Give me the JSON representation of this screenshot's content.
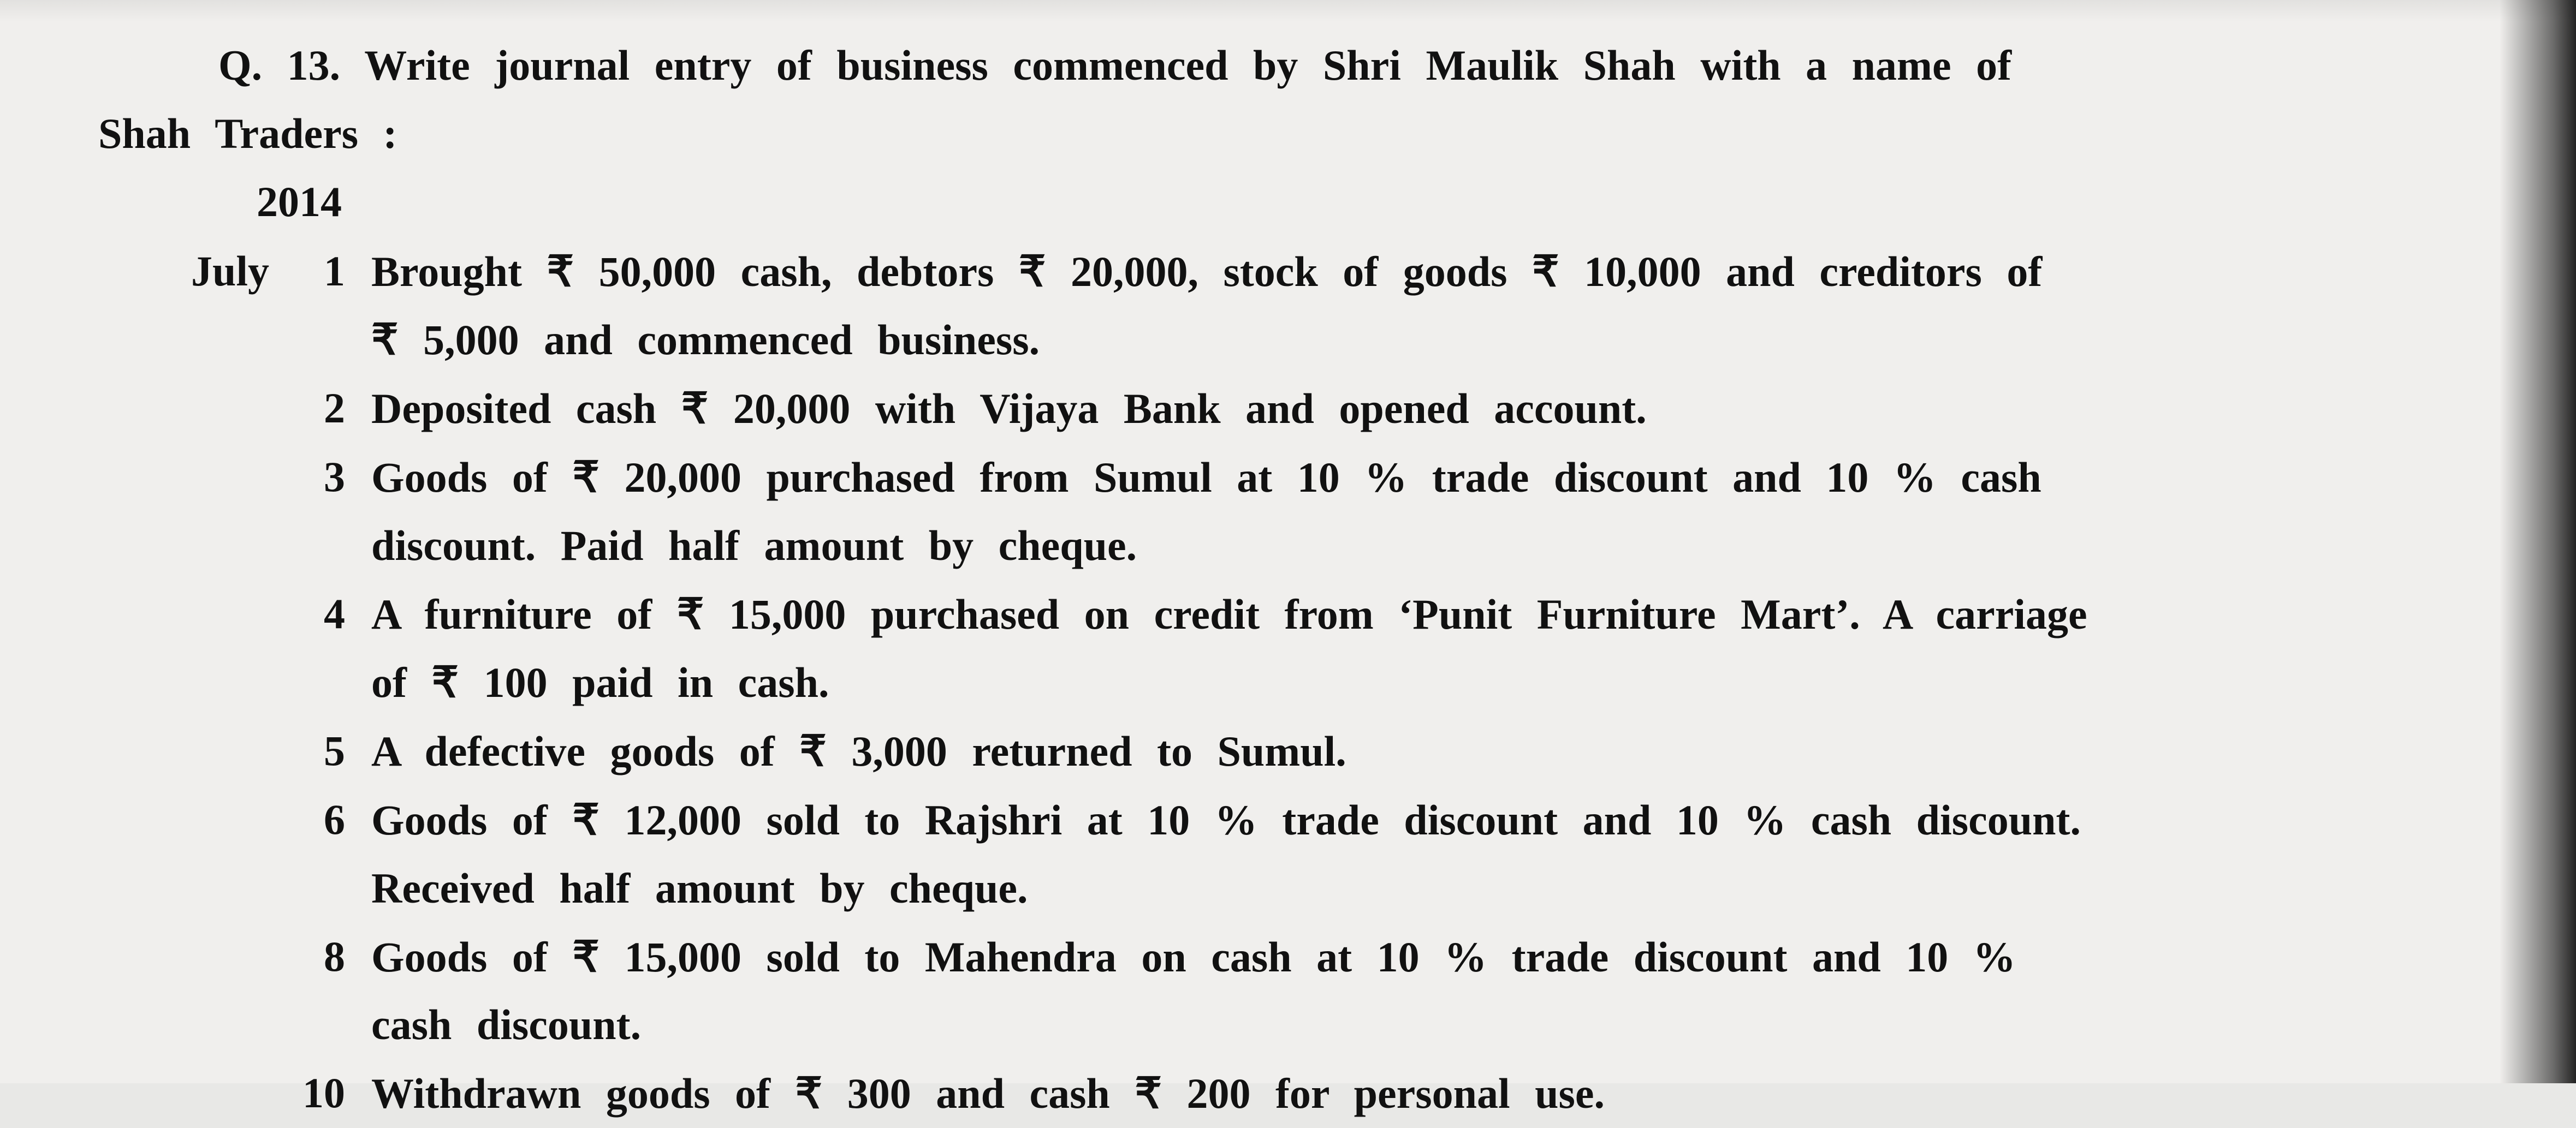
{
  "question": {
    "label": "Q. 13.",
    "line1_rest": "Write journal entry of business commenced by Shri Maulik Shah with a name of",
    "line2": "Shah Traders :",
    "year": "2014",
    "month": "July"
  },
  "entries": [
    {
      "day": "1",
      "show_month": true,
      "justify": true,
      "lines": [
        "Brought <span class=\"rupee\">₹</span> 50,000 cash, debtors <span class=\"rupee\">₹</span> 20,000, stock of goods <span class=\"rupee\">₹</span> 10,000 and creditors of",
        "<span class=\"rupee\">₹</span> 5,000 and commenced business."
      ]
    },
    {
      "day": "2",
      "show_month": false,
      "justify": false,
      "lines": [
        "Deposited cash <span class=\"rupee\">₹</span> 20,000 with Vijaya Bank and opened account."
      ]
    },
    {
      "day": "3",
      "show_month": false,
      "justify": true,
      "lines": [
        "Goods of <span class=\"rupee\">₹</span> 20,000 purchased from Sumul at 10 % trade discount and 10 % cash",
        "discount. Paid half amount by cheque."
      ]
    },
    {
      "day": "4",
      "show_month": false,
      "justify": true,
      "lines": [
        "A furniture of <span class=\"rupee\">₹</span> 15,000 purchased on credit from ‘Punit Furniture Mart’. A carriage",
        "of <span class=\"rupee\">₹</span> 100 paid in cash."
      ]
    },
    {
      "day": "5",
      "show_month": false,
      "justify": false,
      "lines": [
        "A defective goods of <span class=\"rupee\">₹</span> 3,000 returned to Sumul."
      ]
    },
    {
      "day": "6",
      "show_month": false,
      "justify": true,
      "lines": [
        "Goods of <span class=\"rupee\">₹</span> 12,000 sold to Rajshri at 10 % trade discount and 10 % cash discount.",
        "Received half amount by cheque."
      ]
    },
    {
      "day": "8",
      "show_month": false,
      "justify": true,
      "lines": [
        "Goods of <span class=\"rupee\">₹</span> 15,000 sold to Mahendra on cash at 10 % trade discount and 10 %",
        "cash discount."
      ]
    },
    {
      "day": "10",
      "show_month": false,
      "justify": false,
      "lines": [
        "Withdrawn goods of <span class=\"rupee\">₹</span> 300 and cash <span class=\"rupee\">₹</span> 200 for personal use."
      ]
    }
  ]
}
